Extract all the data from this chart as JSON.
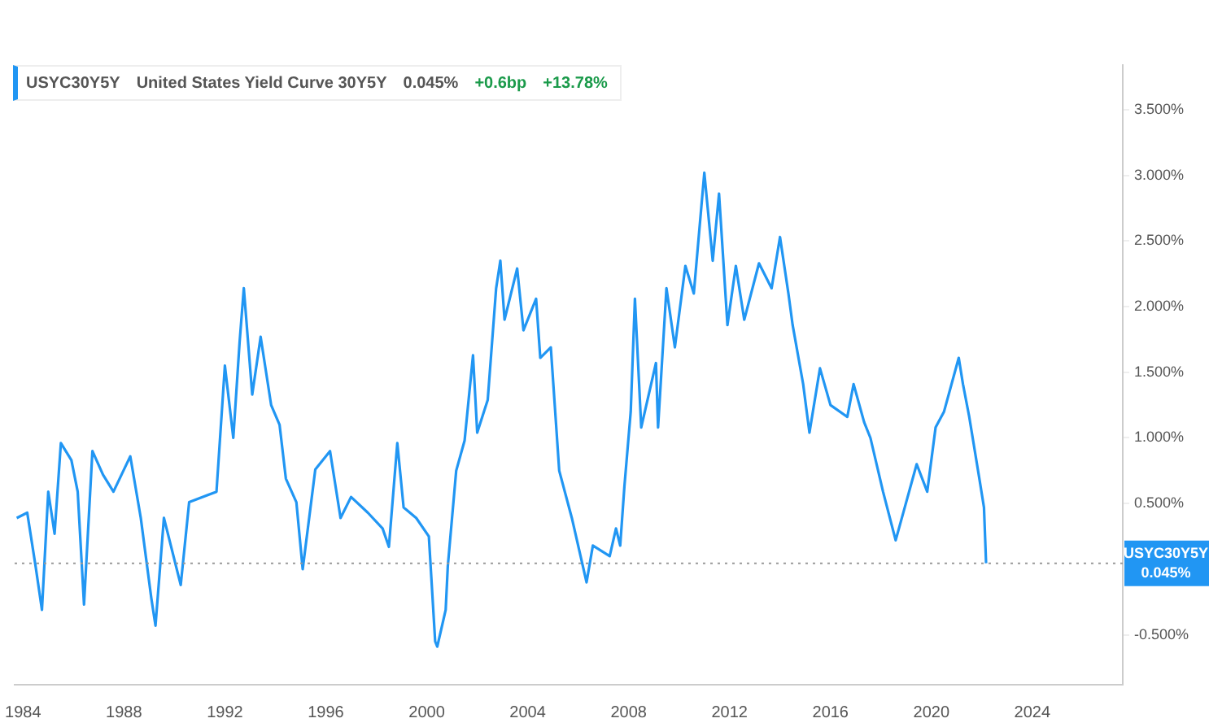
{
  "chart_data": {
    "type": "line",
    "title": "USYC30Y5Y",
    "subtitle": "United States Yield Curve 30Y5Y",
    "annotations": [
      "0.045%",
      "+0.6bp",
      "+13.78%"
    ],
    "x": [
      "1983-10",
      "1984-03",
      "1984-07",
      "1984-10",
      "1985-01",
      "1985-04",
      "1985-07",
      "1985-12",
      "1986-03",
      "1986-06",
      "1986-10",
      "1987-03",
      "1987-08",
      "1988-04",
      "1988-09",
      "1989-02",
      "1989-04",
      "1989-08",
      "1990-04",
      "1990-08",
      "1991-09",
      "1992-01",
      "1992-05",
      "1992-08",
      "1992-10",
      "1993-02",
      "1993-06",
      "1993-11",
      "1994-03",
      "1994-06",
      "1994-11",
      "1995-02",
      "1995-08",
      "1996-03",
      "1996-08",
      "1997-01",
      "1997-09",
      "1998-04",
      "1998-07",
      "1998-11",
      "1999-02",
      "1999-08",
      "2000-02",
      "2000-05",
      "2000-06",
      "2000-10",
      "2000-11",
      "2001-03",
      "2001-07",
      "2001-11",
      "2002-01",
      "2002-06",
      "2002-10",
      "2002-12",
      "2003-02",
      "2003-08",
      "2003-11",
      "2004-05",
      "2004-07",
      "2004-12",
      "2005-04",
      "2005-10",
      "2006-05",
      "2006-08",
      "2007-04",
      "2007-07",
      "2007-09",
      "2007-11",
      "2008-02",
      "2008-04",
      "2008-07",
      "2009-02",
      "2009-03",
      "2009-07",
      "2009-11",
      "2010-04",
      "2010-08",
      "2011-01",
      "2011-05",
      "2011-08",
      "2011-12",
      "2012-04",
      "2012-08",
      "2013-03",
      "2013-09",
      "2014-01",
      "2014-05",
      "2014-07",
      "2014-12",
      "2015-03",
      "2015-08",
      "2016-01",
      "2016-09",
      "2016-12",
      "2017-05",
      "2017-08",
      "2018-02",
      "2018-08",
      "2019-01",
      "2019-06",
      "2019-11",
      "2020-03",
      "2020-07",
      "2021-02",
      "2021-04",
      "2021-07",
      "2021-12",
      "2022-02",
      "2022-03"
    ],
    "series": [
      {
        "color": "#2196f3",
        "values": [
          0.39,
          0.43,
          0.02,
          -0.31,
          0.59,
          0.27,
          0.96,
          0.83,
          0.59,
          -0.27,
          0.9,
          0.72,
          0.59,
          0.86,
          0.39,
          -0.22,
          -0.43,
          0.39,
          -0.12,
          0.51,
          0.59,
          1.55,
          1.0,
          1.73,
          2.14,
          1.33,
          1.77,
          1.25,
          1.1,
          0.69,
          0.51,
          0.0,
          0.76,
          0.9,
          0.39,
          0.55,
          0.43,
          0.31,
          0.17,
          0.96,
          0.47,
          0.39,
          0.25,
          -0.55,
          -0.59,
          -0.31,
          0.02,
          0.75,
          0.98,
          1.63,
          1.04,
          1.29,
          2.14,
          2.35,
          1.9,
          2.29,
          1.82,
          2.06,
          1.61,
          1.69,
          0.75,
          0.39,
          -0.1,
          0.18,
          0.1,
          0.31,
          0.18,
          0.63,
          1.2,
          2.06,
          1.08,
          1.57,
          1.08,
          2.14,
          1.69,
          2.31,
          2.1,
          3.02,
          2.35,
          2.86,
          1.86,
          2.31,
          1.9,
          2.33,
          2.14,
          2.53,
          2.1,
          1.86,
          1.41,
          1.04,
          1.53,
          1.25,
          1.16,
          1.41,
          1.12,
          1.0,
          0.59,
          0.22,
          0.51,
          0.8,
          0.59,
          1.08,
          1.2,
          1.61,
          1.41,
          1.16,
          0.67,
          0.47,
          0.045
        ]
      }
    ],
    "xlim": [
      "1983-09",
      "2027-08"
    ],
    "xticks": [
      "1984",
      "1988",
      "1992",
      "1996",
      "2000",
      "2004",
      "2008",
      "2012",
      "2016",
      "2020",
      "2024"
    ],
    "ylim": [
      -0.88,
      3.84
    ],
    "yticks": [
      {
        "value": -0.5,
        "label": "-0.500%"
      },
      {
        "value": 0.5,
        "label": "0.500%"
      },
      {
        "value": 1,
        "label": "1.000%"
      },
      {
        "value": 1.5,
        "label": "1.500%"
      },
      {
        "value": 2,
        "label": "2.000%"
      },
      {
        "value": 2.5,
        "label": "2.500%"
      },
      {
        "value": 3,
        "label": "3.000%"
      },
      {
        "value": 3.5,
        "label": "3.500%"
      }
    ],
    "ref_lines": [
      {
        "axis": "y",
        "value": 0.045,
        "label": "USYC30Y5Y 0.045%",
        "color": "#999999",
        "line_style": "dotted"
      }
    ],
    "grid": false,
    "legend": false,
    "marker": "none",
    "line_style": "solid"
  }
}
